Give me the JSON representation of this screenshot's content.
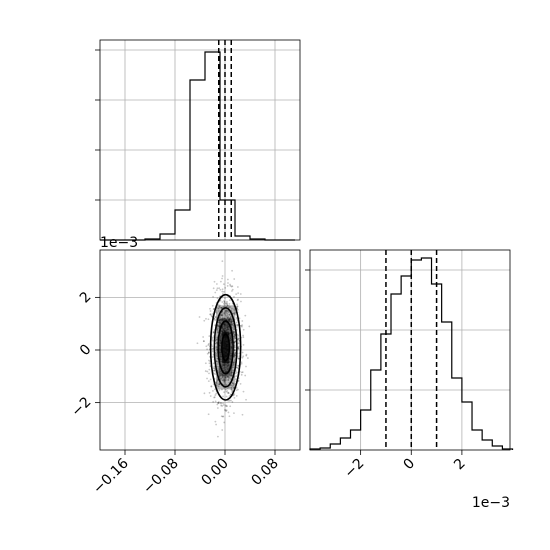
{
  "chart_data": [
    {
      "type": "histogram",
      "panel": "top-left marginal of x",
      "x_range": [
        -0.2,
        0.12
      ],
      "grid": true,
      "bin_edges": [
        -0.2,
        -0.176,
        -0.152,
        -0.128,
        -0.104,
        -0.08,
        -0.056,
        -0.032,
        -0.008,
        0.016,
        0.04,
        0.064,
        0.088,
        0.112
      ],
      "counts": [
        0,
        0,
        0,
        0.005,
        0.03,
        0.15,
        0.8,
        0.94,
        0.2,
        0.02,
        0.005,
        0,
        0
      ],
      "quantile_lines": [
        -0.01,
        0.0,
        0.01
      ]
    },
    {
      "type": "scatter",
      "panel": "bottom-left joint x vs y",
      "x_range": [
        -0.2,
        0.12
      ],
      "y_range": [
        -0.0038,
        0.0038
      ],
      "grid": true,
      "x_ticks": [
        "−0.16",
        "−0.08",
        "0.00",
        "0.08"
      ],
      "x_tick_values": [
        -0.16,
        -0.08,
        0.0,
        0.08
      ],
      "y_ticks": [
        "−2",
        "0",
        "2"
      ],
      "y_tick_values": [
        -0.002,
        0.0,
        0.002
      ],
      "y_offset_label": "1e−3",
      "contour_levels_sigma": [
        0.5,
        1.0,
        1.5,
        2.0
      ],
      "center": [
        0.001,
        0.0001
      ],
      "std": [
        0.012,
        0.001
      ]
    },
    {
      "type": "histogram",
      "panel": "bottom-right marginal of y",
      "x_range": [
        -0.004,
        0.0039
      ],
      "grid": true,
      "x_ticks": [
        "−2",
        "0",
        "2"
      ],
      "x_tick_values": [
        -0.002,
        0.0,
        0.002
      ],
      "x_offset_label": "1e−3",
      "bin_edges": [
        -0.004,
        -0.0036,
        -0.0032,
        -0.0028,
        -0.0024,
        -0.002,
        -0.0016,
        -0.0012,
        -0.0008,
        -0.0004,
        0.0,
        0.0004,
        0.0008,
        0.0012,
        0.0016,
        0.002,
        0.0024,
        0.0028,
        0.0032,
        0.0036,
        0.004
      ],
      "counts": [
        0.005,
        0.01,
        0.03,
        0.06,
        0.1,
        0.2,
        0.4,
        0.58,
        0.78,
        0.87,
        0.95,
        0.96,
        0.83,
        0.64,
        0.36,
        0.24,
        0.1,
        0.05,
        0.02,
        0.005
      ],
      "quantile_lines": [
        -0.001,
        0.0,
        0.001
      ]
    }
  ]
}
